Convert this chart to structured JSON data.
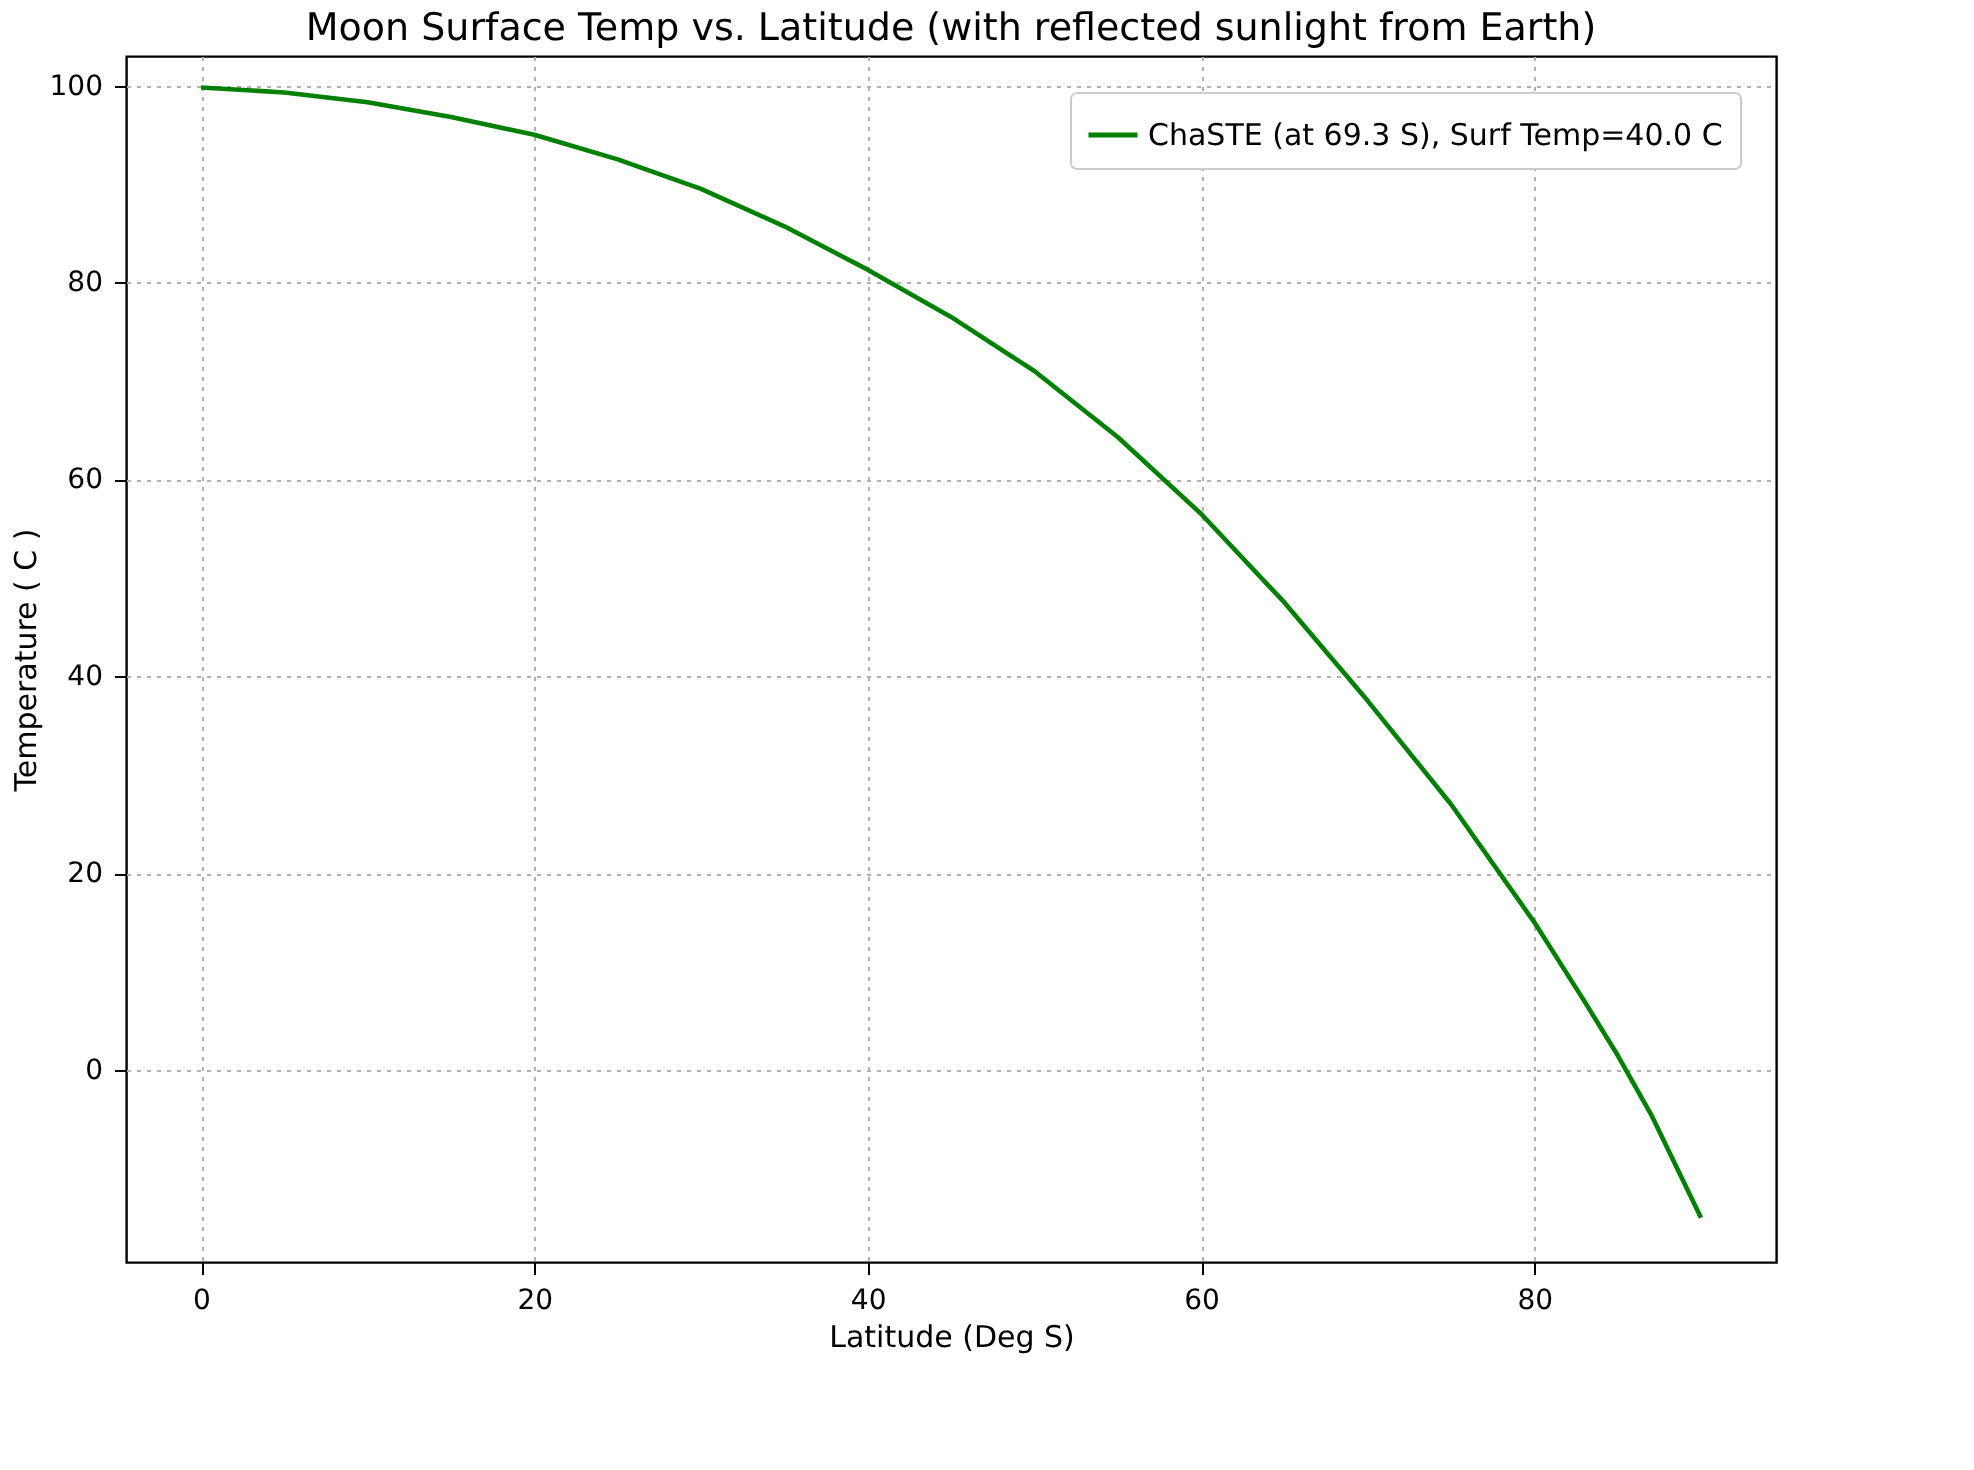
{
  "chart_data": {
    "type": "line",
    "title": "Moon Surface Temp vs. Latitude (with reflected sunlight from Earth)",
    "xlabel": "Latitude (Deg S)",
    "ylabel": "Temperature ( C )",
    "x": [
      0,
      5,
      10,
      15,
      20,
      25,
      30,
      35,
      40,
      45,
      50,
      55,
      60,
      65,
      70,
      75,
      80,
      83,
      85,
      87,
      90
    ],
    "series": [
      {
        "name": "ChaSTE (at 69.3 S), Surf Temp=40.0 C",
        "color": "#008000",
        "values": [
          99.8,
          99.3,
          98.3,
          96.8,
          95,
          92.5,
          89.5,
          85.7,
          81.3,
          76.5,
          71,
          64.3,
          56.5,
          47.5,
          37.5,
          27,
          15,
          7,
          1.5,
          -4.5,
          -15
        ]
      }
    ],
    "xlim": [
      -4.5,
      94.5
    ],
    "ylim": [
      -19.5,
      103
    ],
    "xticks": [
      0,
      20,
      40,
      60,
      80
    ],
    "yticks": [
      0,
      20,
      40,
      60,
      80,
      100
    ],
    "grid": true,
    "legend": "top right",
    "line_style": "solid",
    "marker": "none"
  }
}
